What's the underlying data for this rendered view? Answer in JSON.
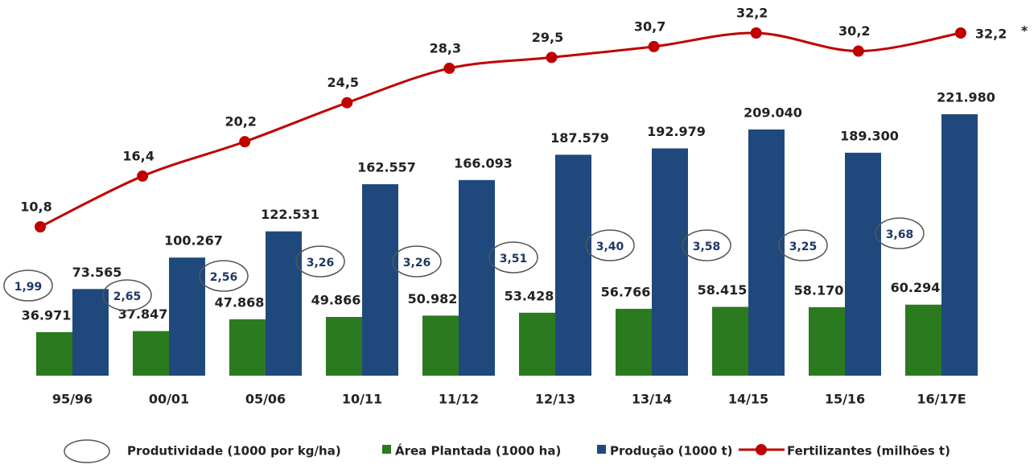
{
  "chart_data": {
    "type": "bar",
    "categories": [
      "95/96",
      "00/01",
      "05/06",
      "10/11",
      "11/12",
      "12/13",
      "13/14",
      "14/15",
      "15/16",
      "16/17E"
    ],
    "series": [
      {
        "name": "Área Plantada (1000 ha)",
        "type": "bar",
        "color": "#2b7a1f",
        "values": [
          36971,
          37847,
          47868,
          49866,
          50982,
          53428,
          56766,
          58415,
          58170,
          60294
        ],
        "value_labels": [
          "36.971",
          "37.847",
          "47.868",
          "49.866",
          "50.982",
          "53.428",
          "56.766",
          "58.415",
          "58.170",
          "60.294"
        ]
      },
      {
        "name": "Produção (1000 t)",
        "type": "bar",
        "color": "#1f497d",
        "values": [
          73565,
          100267,
          122531,
          162557,
          166093,
          187579,
          192979,
          209040,
          189300,
          221980
        ],
        "value_labels": [
          "73.565",
          "100.267",
          "122.531",
          "162.557",
          "166.093",
          "187.579",
          "192.979",
          "209.040",
          "189.300",
          "221.980"
        ]
      },
      {
        "name": "Fertilizantes (milhões t)",
        "type": "line",
        "axis": "y2",
        "color": "#c00000",
        "values": [
          10.8,
          16.4,
          20.2,
          24.5,
          28.3,
          29.5,
          30.7,
          32.2,
          30.2,
          32.2
        ],
        "value_labels": [
          "10,8",
          "16,4",
          "20,2",
          "24,5",
          "28,3",
          "29,5",
          "30,7",
          "32,2",
          "30,2",
          "32,2"
        ]
      }
    ],
    "productivity": {
      "name": "Produtividade (1000 por kg/ha)",
      "values": [
        1.99,
        2.65,
        2.56,
        3.26,
        3.26,
        3.51,
        3.4,
        3.58,
        3.25,
        3.68
      ],
      "value_labels": [
        "1,99",
        "2,65",
        "2,56",
        "3,26",
        "3,26",
        "3,51",
        "3,40",
        "3,58",
        "3,25",
        "3,68"
      ]
    },
    "annotation": "*"
  }
}
